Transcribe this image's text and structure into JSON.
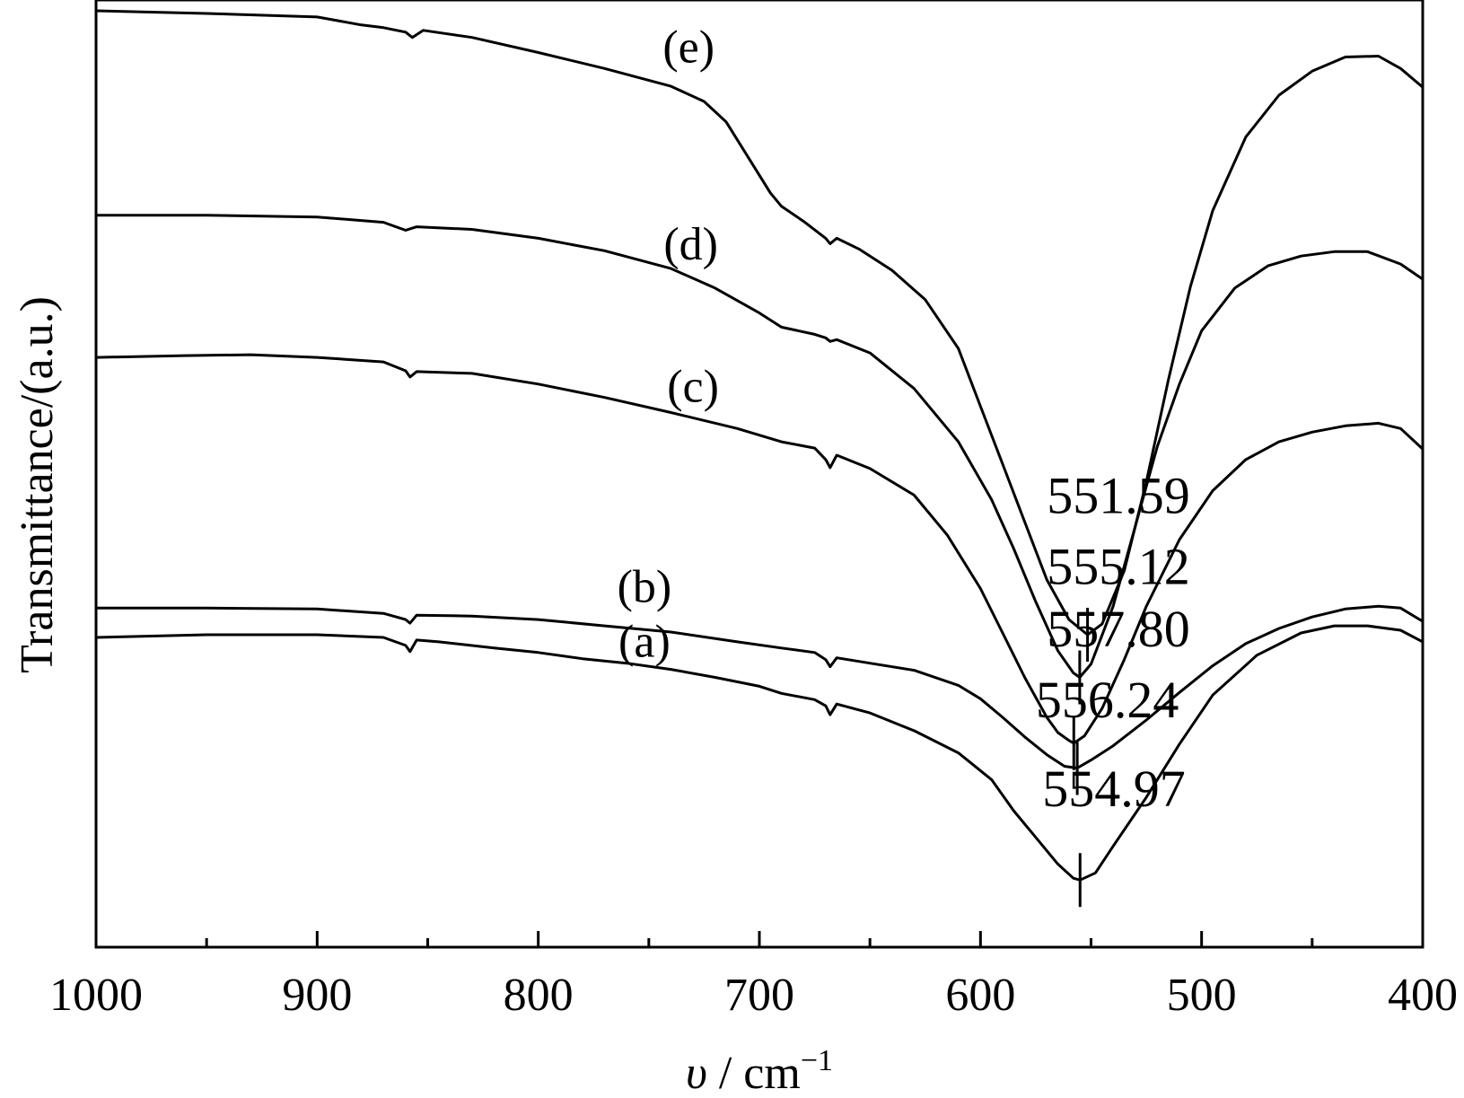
{
  "chart_data": {
    "type": "line",
    "xlabel_symbol": "υ",
    "xlabel_sep": " / ",
    "xlabel_unit": "cm",
    "xlabel_exp": "−1",
    "ylabel": "Transmittance/(a.u.)",
    "xlim": [
      1000,
      400
    ],
    "x_ticks": [
      "1000",
      "900",
      "800",
      "700",
      "600",
      "500",
      "400"
    ],
    "x_tick_values": [
      1000,
      900,
      800,
      700,
      600,
      500,
      400
    ],
    "x_minor_tick_values": [
      950,
      850,
      750,
      650,
      550,
      450
    ],
    "ylim": [
      0,
      100
    ],
    "y_ticks_shown": false,
    "grid": false,
    "legend": "none",
    "colors": {
      "line": "#000000",
      "background": "#ffffff"
    },
    "series": [
      {
        "name": "(a)",
        "x": [
          1000,
          950,
          900,
          870,
          860,
          858,
          855,
          845,
          820,
          800,
          780,
          760,
          740,
          720,
          700,
          690,
          675,
          670,
          668,
          665,
          650,
          630,
          610,
          595,
          585,
          575,
          565,
          558,
          554.97,
          548,
          540,
          525,
          510,
          495,
          475,
          455,
          440,
          425,
          410,
          400
        ],
        "y": [
          29.5,
          29.8,
          29.8,
          29.5,
          28.6,
          27.9,
          29.2,
          29.0,
          28.3,
          27.8,
          27.1,
          26.6,
          25.9,
          25.0,
          24.0,
          23.2,
          22.5,
          21.8,
          20.8,
          22.0,
          21.0,
          19.0,
          16.5,
          13.5,
          10.0,
          7.0,
          4.0,
          2.4,
          2.2,
          3.0,
          6.0,
          11.5,
          17.5,
          23.0,
          27.5,
          30.0,
          30.8,
          30.8,
          30.3,
          29.0
        ]
      },
      {
        "name": "(b)",
        "x": [
          1000,
          950,
          900,
          870,
          860,
          858,
          855,
          830,
          800,
          770,
          740,
          710,
          690,
          675,
          670,
          668,
          665,
          650,
          630,
          610,
          600,
          590,
          580,
          570,
          562,
          556.24,
          550,
          540,
          525,
          510,
          495,
          480,
          465,
          450,
          435,
          420,
          410,
          400
        ],
        "y": [
          32.8,
          32.8,
          32.7,
          32.2,
          31.5,
          31.1,
          32.0,
          31.9,
          31.5,
          30.8,
          30.1,
          29.0,
          28.3,
          27.8,
          27.0,
          26.2,
          27.2,
          26.6,
          25.8,
          24.1,
          22.6,
          20.5,
          18.3,
          16.3,
          15.0,
          14.8,
          15.7,
          17.3,
          20.2,
          23.3,
          26.3,
          28.8,
          30.5,
          31.8,
          32.7,
          33.0,
          32.8,
          31.3
        ]
      },
      {
        "name": "(c)",
        "x": [
          1000,
          960,
          930,
          900,
          870,
          860,
          858,
          855,
          830,
          800,
          770,
          740,
          710,
          690,
          675,
          670,
          668,
          665,
          650,
          630,
          615,
          600,
          590,
          580,
          570,
          565,
          560,
          557.8,
          553,
          545,
          535,
          525,
          510,
          495,
          480,
          465,
          450,
          435,
          420,
          410,
          400
        ],
        "y": [
          61.0,
          61.2,
          61.3,
          61.0,
          60.5,
          59.5,
          58.8,
          59.4,
          59.2,
          58.0,
          56.5,
          54.8,
          53.0,
          51.5,
          50.8,
          49.5,
          48.6,
          50.0,
          48.5,
          45.5,
          41.0,
          35.0,
          30.0,
          25.0,
          20.5,
          18.8,
          17.9,
          17.6,
          18.4,
          21.5,
          27.0,
          33.0,
          40.5,
          46.0,
          49.5,
          51.5,
          52.6,
          53.3,
          53.6,
          53.0,
          50.7
        ]
      },
      {
        "name": "(d)",
        "x": [
          1000,
          950,
          900,
          870,
          860,
          855,
          830,
          800,
          770,
          740,
          720,
          700,
          690,
          675,
          670,
          668,
          665,
          650,
          630,
          610,
          595,
          585,
          575,
          565,
          558,
          555.12,
          550,
          540,
          530,
          520,
          510,
          500,
          485,
          470,
          455,
          440,
          425,
          410,
          400
        ],
        "y": [
          77.0,
          77.0,
          76.8,
          76.2,
          75.3,
          75.7,
          75.4,
          74.4,
          73.0,
          71.0,
          68.8,
          66.0,
          64.4,
          63.6,
          63.2,
          62.8,
          63.0,
          61.5,
          57.5,
          51.5,
          45.0,
          39.5,
          33.5,
          28.0,
          25.5,
          25.0,
          26.5,
          33.0,
          42.0,
          51.0,
          58.0,
          64.0,
          68.8,
          71.3,
          72.4,
          72.9,
          72.9,
          71.5,
          69.8
        ]
      },
      {
        "name": "(e)",
        "x": [
          1000,
          950,
          900,
          880,
          870,
          860,
          857,
          852,
          830,
          800,
          770,
          740,
          725,
          715,
          705,
          695,
          690,
          680,
          670,
          668,
          665,
          655,
          640,
          625,
          610,
          600,
          590,
          580,
          570,
          560,
          551.59,
          545,
          535,
          525,
          515,
          505,
          495,
          480,
          465,
          450,
          435,
          420,
          410,
          400
        ],
        "y": [
          100.0,
          99.7,
          99.3,
          98.4,
          98.1,
          97.6,
          97.0,
          97.8,
          97.0,
          95.3,
          93.5,
          91.5,
          89.8,
          87.5,
          83.5,
          79.5,
          78.0,
          76.3,
          74.4,
          73.8,
          74.4,
          73.2,
          70.8,
          67.5,
          62.0,
          55.5,
          49.0,
          42.5,
          36.0,
          31.5,
          29.8,
          31.0,
          37.0,
          47.0,
          58.5,
          69.0,
          77.5,
          85.8,
          90.5,
          93.2,
          94.8,
          94.9,
          93.5,
          91.4
        ]
      }
    ],
    "curve_labels": [
      {
        "series": "(e)",
        "text": "(e)",
        "x": 732,
        "y": 94.2
      },
      {
        "series": "(d)",
        "text": "(d)",
        "x": 731,
        "y": 72.0
      },
      {
        "series": "(c)",
        "text": "(c)",
        "x": 730,
        "y": 56.0
      },
      {
        "series": "(b)",
        "text": "(b)",
        "x": 752,
        "y": 33.5
      },
      {
        "series": "(a)",
        "text": "(a)",
        "x": 752,
        "y": 27.3
      }
    ],
    "peak_annotations": [
      {
        "series": "(e)",
        "text": "551.59",
        "x": 551.59,
        "y": 29.8,
        "label_x": 570,
        "label_y": 43.5
      },
      {
        "series": "(d)",
        "text": "555.12",
        "x": 555.12,
        "y": 25.0,
        "label_x": 570,
        "label_y": 35.5
      },
      {
        "series": "(c)",
        "text": "557.80",
        "x": 557.8,
        "y": 17.6,
        "label_x": 570,
        "label_y": 28.5
      },
      {
        "series": "(b)",
        "text": "556.24",
        "x": 556.24,
        "y": 14.8,
        "label_x": 575,
        "label_y": 20.5
      },
      {
        "series": "(a)",
        "text": "554.97",
        "x": 554.97,
        "y": 2.2,
        "label_x": 572,
        "label_y": 10.5
      }
    ]
  }
}
